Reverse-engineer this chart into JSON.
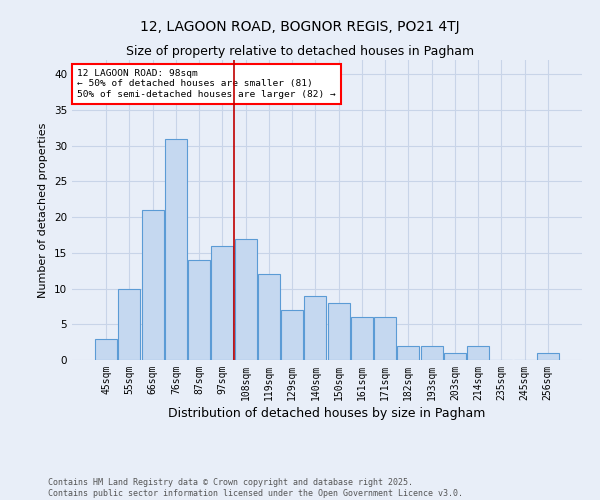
{
  "title": "12, LAGOON ROAD, BOGNOR REGIS, PO21 4TJ",
  "subtitle": "Size of property relative to detached houses in Pagham",
  "xlabel": "Distribution of detached houses by size in Pagham",
  "ylabel": "Number of detached properties",
  "categories": [
    "45sqm",
    "55sqm",
    "66sqm",
    "76sqm",
    "87sqm",
    "97sqm",
    "108sqm",
    "119sqm",
    "129sqm",
    "140sqm",
    "150sqm",
    "161sqm",
    "171sqm",
    "182sqm",
    "193sqm",
    "203sqm",
    "214sqm",
    "235sqm",
    "245sqm",
    "256sqm"
  ],
  "values": [
    3,
    10,
    21,
    31,
    14,
    16,
    17,
    12,
    7,
    9,
    8,
    6,
    6,
    2,
    2,
    1,
    2,
    0,
    0,
    1
  ],
  "bar_color": "#c5d8f0",
  "bar_edge_color": "#5b9bd5",
  "red_line_x": 5.5,
  "annotation_text": "12 LAGOON ROAD: 98sqm\n← 50% of detached houses are smaller (81)\n50% of semi-detached houses are larger (82) →",
  "annotation_box_color": "white",
  "annotation_box_edge_color": "red",
  "red_line_color": "#c00000",
  "ylim": [
    0,
    42
  ],
  "yticks": [
    0,
    5,
    10,
    15,
    20,
    25,
    30,
    35,
    40
  ],
  "grid_color": "#c8d4e8",
  "background_color": "#e8eef8",
  "footer_line1": "Contains HM Land Registry data © Crown copyright and database right 2025.",
  "footer_line2": "Contains public sector information licensed under the Open Government Licence v3.0.",
  "title_fontsize": 10,
  "subtitle_fontsize": 9,
  "tick_fontsize": 7,
  "ylabel_fontsize": 8,
  "xlabel_fontsize": 9,
  "footer_fontsize": 6
}
